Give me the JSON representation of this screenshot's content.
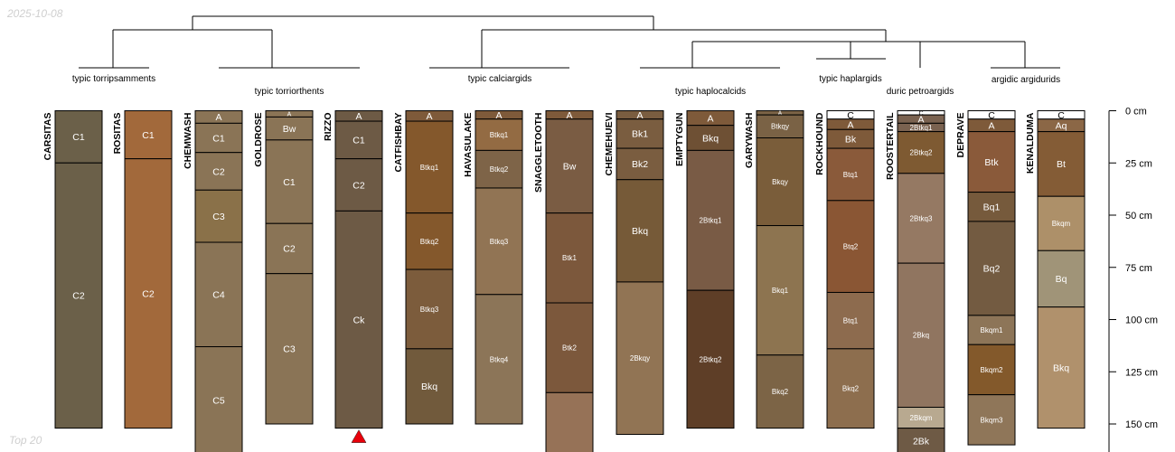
{
  "date_label": "2025-10-08",
  "footer_label": "Top 20",
  "colors": {
    "line": "#000000",
    "marker": "#e8000b",
    "corner_text": "#cfcfcf"
  },
  "chart_data": {
    "type": "soil-profile-sketch",
    "depth_unit": "cm",
    "depth_ticks": [
      0,
      25,
      50,
      75,
      100,
      125,
      150
    ],
    "depth_tick_labels": [
      "0 cm",
      "25 cm",
      "50 cm",
      "75 cm",
      "100 cm",
      "125 cm",
      "150 cm"
    ],
    "depth_range": [
      0,
      165
    ],
    "taxa_labels": [
      "typic torripsamments",
      "typic torriorthents",
      "typic calciargids",
      "typic haplocalcids",
      "typic haplargids",
      "duric petroargids",
      "argidic argidurids"
    ],
    "profiles": [
      {
        "name": "CARSITAS",
        "horizons": [
          {
            "name": "C1",
            "top": 0,
            "bottom": 25,
            "color": "#6b6049"
          },
          {
            "name": "C2",
            "top": 25,
            "bottom": 152,
            "color": "#6b6049"
          }
        ]
      },
      {
        "name": "ROSITAS",
        "horizons": [
          {
            "name": "C1",
            "top": 0,
            "bottom": 23,
            "color": "#a2693b"
          },
          {
            "name": "C2",
            "top": 23,
            "bottom": 152,
            "color": "#a2693b"
          }
        ]
      },
      {
        "name": "CHEMWASH",
        "horizons": [
          {
            "name": "A",
            "top": 0,
            "bottom": 6,
            "color": "#8a7456"
          },
          {
            "name": "C1",
            "top": 6,
            "bottom": 20,
            "color": "#8a7456"
          },
          {
            "name": "C2",
            "top": 20,
            "bottom": 38,
            "color": "#8a7456"
          },
          {
            "name": "C3",
            "top": 38,
            "bottom": 63,
            "color": "#8a7149"
          },
          {
            "name": "C4",
            "top": 63,
            "bottom": 113,
            "color": "#8a7456"
          },
          {
            "name": "C5",
            "top": 113,
            "bottom": 165,
            "color": "#8a7456"
          }
        ]
      },
      {
        "name": "GOLDROSE",
        "horizons": [
          {
            "name": "A",
            "top": 0,
            "bottom": 3,
            "color": "#8a7456"
          },
          {
            "name": "Bw",
            "top": 3,
            "bottom": 14,
            "color": "#8a7456"
          },
          {
            "name": "C1",
            "top": 14,
            "bottom": 54,
            "color": "#8a7456"
          },
          {
            "name": "C2",
            "top": 54,
            "bottom": 78,
            "color": "#8a7456"
          },
          {
            "name": "C3",
            "top": 78,
            "bottom": 150,
            "color": "#8a7456"
          }
        ]
      },
      {
        "name": "RIZZO",
        "marker": true,
        "horizons": [
          {
            "name": "A",
            "top": 0,
            "bottom": 5,
            "color": "#6d5a45"
          },
          {
            "name": "C1",
            "top": 5,
            "bottom": 23,
            "color": "#6d5a45"
          },
          {
            "name": "C2",
            "top": 23,
            "bottom": 48,
            "color": "#6d5a45"
          },
          {
            "name": "Ck",
            "top": 48,
            "bottom": 152,
            "color": "#6d5a45"
          }
        ]
      },
      {
        "name": "CATFISHBAY",
        "horizons": [
          {
            "name": "A",
            "top": 0,
            "bottom": 5,
            "color": "#7e5a3a"
          },
          {
            "name": "Btkq1",
            "top": 5,
            "bottom": 49,
            "color": "#84582c"
          },
          {
            "name": "Btkq2",
            "top": 49,
            "bottom": 76,
            "color": "#84582c"
          },
          {
            "name": "Btkq3",
            "top": 76,
            "bottom": 114,
            "color": "#7c5c3c"
          },
          {
            "name": "Bkq",
            "top": 114,
            "bottom": 150,
            "color": "#715a3c"
          }
        ]
      },
      {
        "name": "HAVASULAKE",
        "horizons": [
          {
            "name": "A",
            "top": 0,
            "bottom": 4,
            "color": "#7e5a3a"
          },
          {
            "name": "Btkq1",
            "top": 4,
            "bottom": 19,
            "color": "#936b43"
          },
          {
            "name": "Btkq2",
            "top": 19,
            "bottom": 37,
            "color": "#7e6448"
          },
          {
            "name": "Btkq3",
            "top": 37,
            "bottom": 88,
            "color": "#917454"
          },
          {
            "name": "Btkq4",
            "top": 88,
            "bottom": 150,
            "color": "#8c7558"
          }
        ]
      },
      {
        "name": "SNAGGLETOOTH",
        "horizons": [
          {
            "name": "A",
            "top": 0,
            "bottom": 4,
            "color": "#7e5a3a"
          },
          {
            "name": "Bw",
            "top": 4,
            "bottom": 49,
            "color": "#7a5c43"
          },
          {
            "name": "Btk1",
            "top": 49,
            "bottom": 92,
            "color": "#7c583c"
          },
          {
            "name": "Btk2",
            "top": 92,
            "bottom": 135,
            "color": "#7c583c"
          },
          {
            "name": "",
            "top": 135,
            "bottom": 165,
            "color": "#967257"
          }
        ]
      },
      {
        "name": "CHEMEHUEVI",
        "horizons": [
          {
            "name": "A",
            "top": 0,
            "bottom": 4,
            "color": "#7a5d40"
          },
          {
            "name": "Bk1",
            "top": 4,
            "bottom": 18,
            "color": "#7a5d40"
          },
          {
            "name": "Bk2",
            "top": 18,
            "bottom": 33,
            "color": "#7a5d40"
          },
          {
            "name": "Bkq",
            "top": 33,
            "bottom": 82,
            "color": "#765a38"
          },
          {
            "name": "2Bkqy",
            "top": 82,
            "bottom": 155,
            "color": "#917454"
          }
        ]
      },
      {
        "name": "EMPTYGUN",
        "horizons": [
          {
            "name": "A",
            "top": 0,
            "bottom": 7,
            "color": "#7e5a3a"
          },
          {
            "name": "Bkq",
            "top": 7,
            "bottom": 19,
            "color": "#6e5034"
          },
          {
            "name": "2Btkq1",
            "top": 19,
            "bottom": 86,
            "color": "#795b45"
          },
          {
            "name": "2Btkq2",
            "top": 86,
            "bottom": 152,
            "color": "#5e3e27"
          }
        ]
      },
      {
        "name": "GARYWASH",
        "horizons": [
          {
            "name": "A",
            "top": 0,
            "bottom": 2,
            "color": "#7a6245"
          },
          {
            "name": "Btkqy",
            "top": 2,
            "bottom": 13,
            "color": "#7a6245"
          },
          {
            "name": "Bkqy",
            "top": 13,
            "bottom": 55,
            "color": "#7a5d3a"
          },
          {
            "name": "Bkq1",
            "top": 55,
            "bottom": 117,
            "color": "#8d7450"
          },
          {
            "name": "Bkq2",
            "top": 117,
            "bottom": 152,
            "color": "#7c6446"
          }
        ]
      },
      {
        "name": "ROCKHOUND",
        "horizons": [
          {
            "name": "C",
            "top": 0,
            "bottom": 4,
            "color": "#ffffff"
          },
          {
            "name": "A",
            "top": 4,
            "bottom": 9,
            "color": "#7e5a3a"
          },
          {
            "name": "Bk",
            "top": 9,
            "bottom": 18,
            "color": "#7e5a3a"
          },
          {
            "name": "Btq1",
            "top": 18,
            "bottom": 43,
            "color": "#8a5a3a"
          },
          {
            "name": "Btq2",
            "top": 43,
            "bottom": 87,
            "color": "#8a5634"
          },
          {
            "name": "Btq1",
            "top": 87,
            "bottom": 114,
            "color": "#8d6b4e"
          },
          {
            "name": "Bkq2",
            "top": 114,
            "bottom": 152,
            "color": "#8d6e4e"
          }
        ]
      },
      {
        "name": "ROOSTERTAIL",
        "horizons": [
          {
            "name": "C",
            "top": 0,
            "bottom": 2,
            "color": "#ffffff"
          },
          {
            "name": "A",
            "top": 2,
            "bottom": 6,
            "color": "#7a6250"
          },
          {
            "name": "2Btkq1",
            "top": 6,
            "bottom": 10,
            "color": "#7a6250"
          },
          {
            "name": "2Btkq2",
            "top": 10,
            "bottom": 30,
            "color": "#7e5a32"
          },
          {
            "name": "2Btkq3",
            "top": 30,
            "bottom": 73,
            "color": "#957963"
          },
          {
            "name": "2Bkq",
            "top": 73,
            "bottom": 142,
            "color": "#907560"
          },
          {
            "name": "2Bkqm",
            "top": 142,
            "bottom": 152,
            "color": "#b8a990"
          },
          {
            "name": "2Bk",
            "top": 152,
            "bottom": 165,
            "color": "#6e5a45"
          }
        ]
      },
      {
        "name": "DEPRAVE",
        "horizons": [
          {
            "name": "C",
            "top": 0,
            "bottom": 4,
            "color": "#ffffff"
          },
          {
            "name": "A",
            "top": 4,
            "bottom": 10,
            "color": "#7e5a3a"
          },
          {
            "name": "Btk",
            "top": 10,
            "bottom": 39,
            "color": "#8a5a3a"
          },
          {
            "name": "Bq1",
            "top": 39,
            "bottom": 53,
            "color": "#765a3c"
          },
          {
            "name": "Bq2",
            "top": 53,
            "bottom": 98,
            "color": "#735b41"
          },
          {
            "name": "Bkqm1",
            "top": 98,
            "bottom": 112,
            "color": "#8d7558"
          },
          {
            "name": "Bkqm2",
            "top": 112,
            "bottom": 136,
            "color": "#83592b"
          },
          {
            "name": "Bkqm3",
            "top": 136,
            "bottom": 160,
            "color": "#8f7659"
          }
        ]
      },
      {
        "name": "KENALDUMA",
        "horizons": [
          {
            "name": "C",
            "top": 0,
            "bottom": 4,
            "color": "#ffffff"
          },
          {
            "name": "Aq",
            "top": 4,
            "bottom": 10,
            "color": "#8b6746"
          },
          {
            "name": "Bt",
            "top": 10,
            "bottom": 41,
            "color": "#845c36"
          },
          {
            "name": "Bkqm",
            "top": 41,
            "bottom": 67,
            "color": "#ad9069"
          },
          {
            "name": "Bq",
            "top": 67,
            "bottom": 94,
            "color": "#a09478"
          },
          {
            "name": "Bkq",
            "top": 94,
            "bottom": 152,
            "color": "#b0916c"
          }
        ]
      }
    ]
  }
}
